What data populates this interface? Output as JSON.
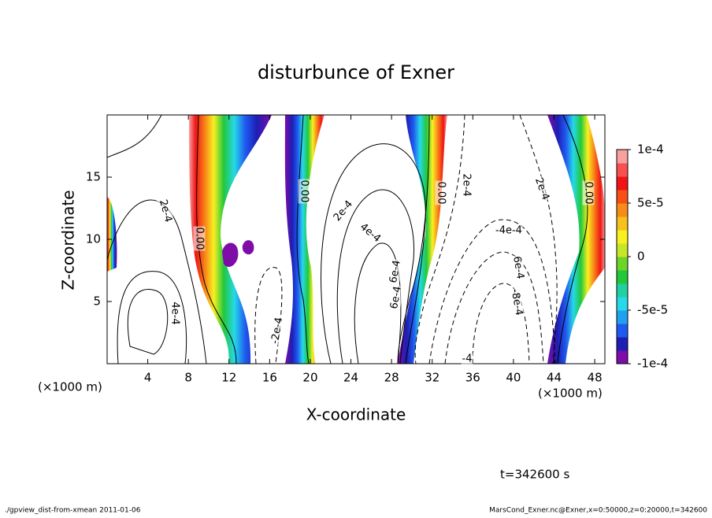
{
  "chart_data": {
    "type": "contour",
    "title": "disturbunce of Exner",
    "x_label": "X-coordinate",
    "y_label": "Z-coordinate",
    "x_unit_left": "(×1000 m)",
    "x_unit_right": "(×1000 m)",
    "xlim": [
      0,
      49
    ],
    "xticks": [
      4,
      8,
      12,
      16,
      20,
      24,
      28,
      32,
      36,
      40,
      44,
      48
    ],
    "ylim": [
      0,
      20
    ],
    "yticks": [
      5,
      10,
      15
    ],
    "colorbar_lim": [
      -0.0001,
      0.0001
    ],
    "colorbar_ticks": [
      {
        "value": 0.0001,
        "label": "1e-4"
      },
      {
        "value": 5e-05,
        "label": "5e-5"
      },
      {
        "value": 0,
        "label": "0"
      },
      {
        "value": -5e-05,
        "label": "-5e-5"
      },
      {
        "value": -0.0001,
        "label": "-1e-4"
      }
    ],
    "colorbar_colors": [
      "#7d0ca8",
      "#1e1eb4",
      "#1f5af0",
      "#22a0f0",
      "#26d8e8",
      "#20d0a0",
      "#22c83c",
      "#6ed428",
      "#c8e628",
      "#f8f020",
      "#f8c01c",
      "#f88c18",
      "#f85014",
      "#f01414",
      "#f85050",
      "#f8a0a0"
    ],
    "contour_labels": [
      "2e-4",
      "0.00",
      "4e-4",
      "-2e-4",
      "0.00",
      "2e-4",
      "4e-4",
      "6e-4",
      "0.00",
      "2e-4",
      "-4e-4",
      "6e-4",
      "-8e-4",
      "2e-4",
      "0.00",
      "6e-4",
      "-4"
    ],
    "time_label": "t=342600 s",
    "footer_left": "./gpview_dist-from-xmean  2011-01-06",
    "footer_right": "MarsCond_Exner.nc@Exner,x=0:50000,z=0:20000,t=342600"
  }
}
